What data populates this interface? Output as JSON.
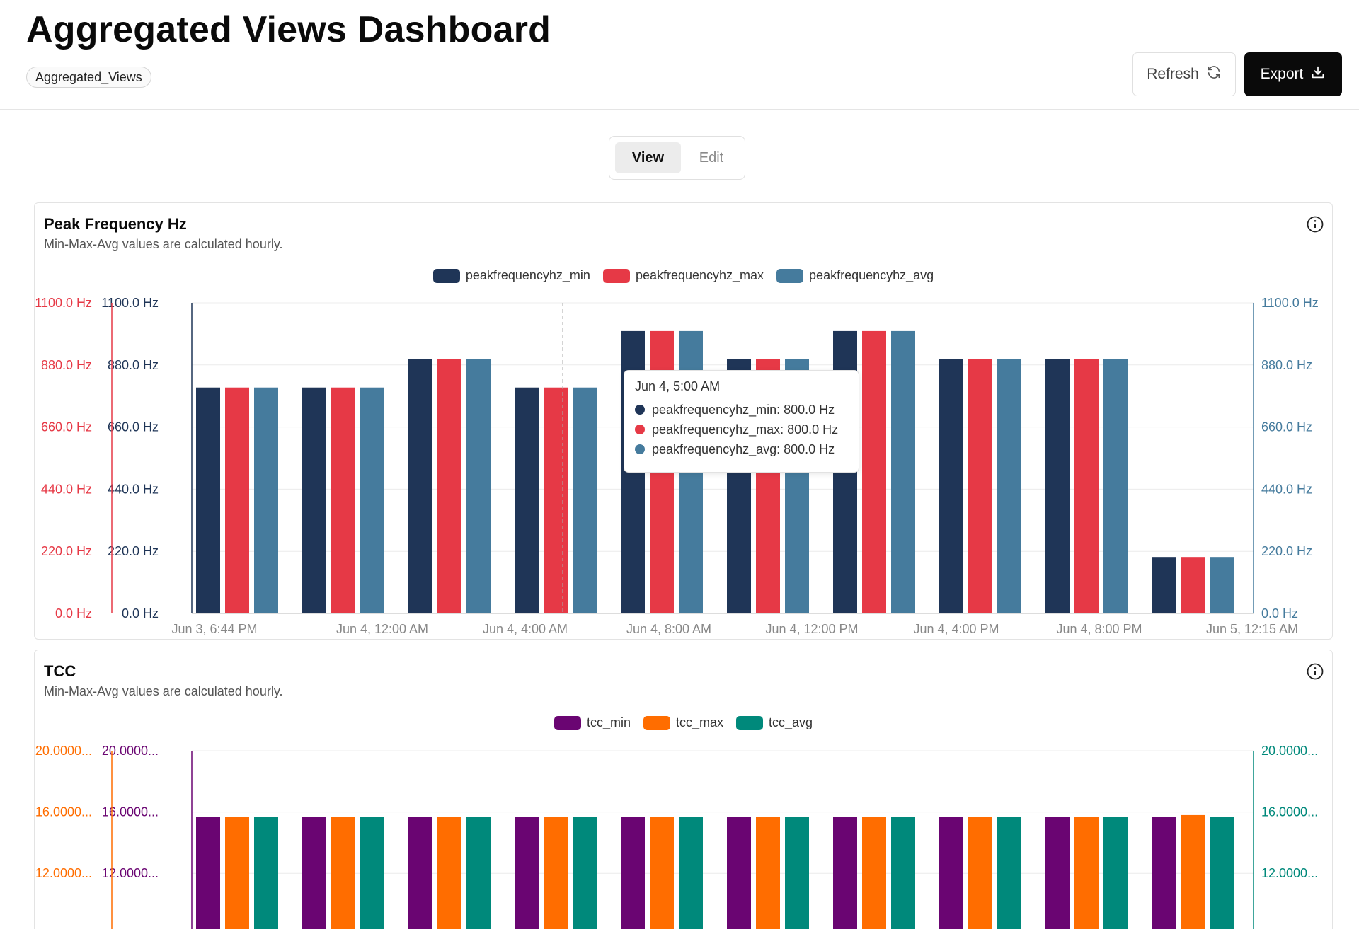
{
  "header": {
    "title": "Aggregated Views Dashboard",
    "tag": "Aggregated_Views",
    "refresh_label": "Refresh",
    "export_label": "Export"
  },
  "mode_toggle": {
    "view_label": "View",
    "edit_label": "Edit",
    "selected": "View"
  },
  "cards": [
    {
      "title": "Peak Frequency Hz",
      "subtitle": "Min-Max-Avg values are calculated hourly."
    },
    {
      "title": "TCC",
      "subtitle": "Min-Max-Avg values are calculated hourly."
    }
  ],
  "tooltip": {
    "title": "Jun 4, 5:00 AM",
    "rows": [
      "peakfrequencyhz_min: 800.0 Hz",
      "peakfrequencyhz_max: 800.0 Hz",
      "peakfrequencyhz_avg: 800.0 Hz"
    ]
  },
  "chart_data": [
    {
      "type": "bar",
      "title": "Peak Frequency Hz",
      "x_tick_labels": [
        "Jun 3, 6:44 PM",
        "Jun 4, 12:00 AM",
        "Jun 4, 4:00 AM",
        "Jun 4, 8:00 AM",
        "Jun 4, 12:00 PM",
        "Jun 4, 4:00 PM",
        "Jun 4, 8:00 PM",
        "Jun 5, 12:15 AM"
      ],
      "y_tick_labels": [
        "0.0 Hz",
        "220.0 Hz",
        "440.0 Hz",
        "660.0 Hz",
        "880.0 Hz",
        "1100.0 Hz"
      ],
      "ylim": [
        0,
        1100
      ],
      "grid": true,
      "legend_position": "top-center",
      "series": [
        {
          "name": "peakfrequencyhz_min",
          "color": "#1f3557",
          "values": [
            800,
            800,
            900,
            800,
            1000,
            900,
            1000,
            900,
            900,
            200
          ]
        },
        {
          "name": "peakfrequencyhz_max",
          "color": "#e63946",
          "values": [
            800,
            800,
            900,
            800,
            1000,
            900,
            1000,
            900,
            900,
            200
          ]
        },
        {
          "name": "peakfrequencyhz_avg",
          "color": "#457b9d",
          "values": [
            800,
            800,
            900,
            800,
            1000,
            900,
            1000,
            900,
            900,
            200
          ]
        }
      ]
    },
    {
      "type": "bar",
      "title": "TCC",
      "y_tick_labels": [
        "12.0000...",
        "16.0000...",
        "20.0000..."
      ],
      "y_tick_values": [
        12,
        16,
        20
      ],
      "ylim": [
        0,
        20
      ],
      "grid": true,
      "legend_position": "top-center",
      "series": [
        {
          "name": "tcc_min",
          "color": "#6a0572",
          "values": [
            15.7,
            15.7,
            15.7,
            15.7,
            15.7,
            15.7,
            15.7,
            15.7,
            15.7,
            15.7
          ]
        },
        {
          "name": "tcc_max",
          "color": "#ff6d00",
          "values": [
            15.7,
            15.7,
            15.7,
            15.7,
            15.7,
            15.7,
            15.7,
            15.7,
            15.7,
            15.8
          ]
        },
        {
          "name": "tcc_avg",
          "color": "#00897b",
          "values": [
            15.7,
            15.7,
            15.7,
            15.7,
            15.7,
            15.7,
            15.7,
            15.7,
            15.7,
            15.7
          ]
        }
      ]
    }
  ]
}
